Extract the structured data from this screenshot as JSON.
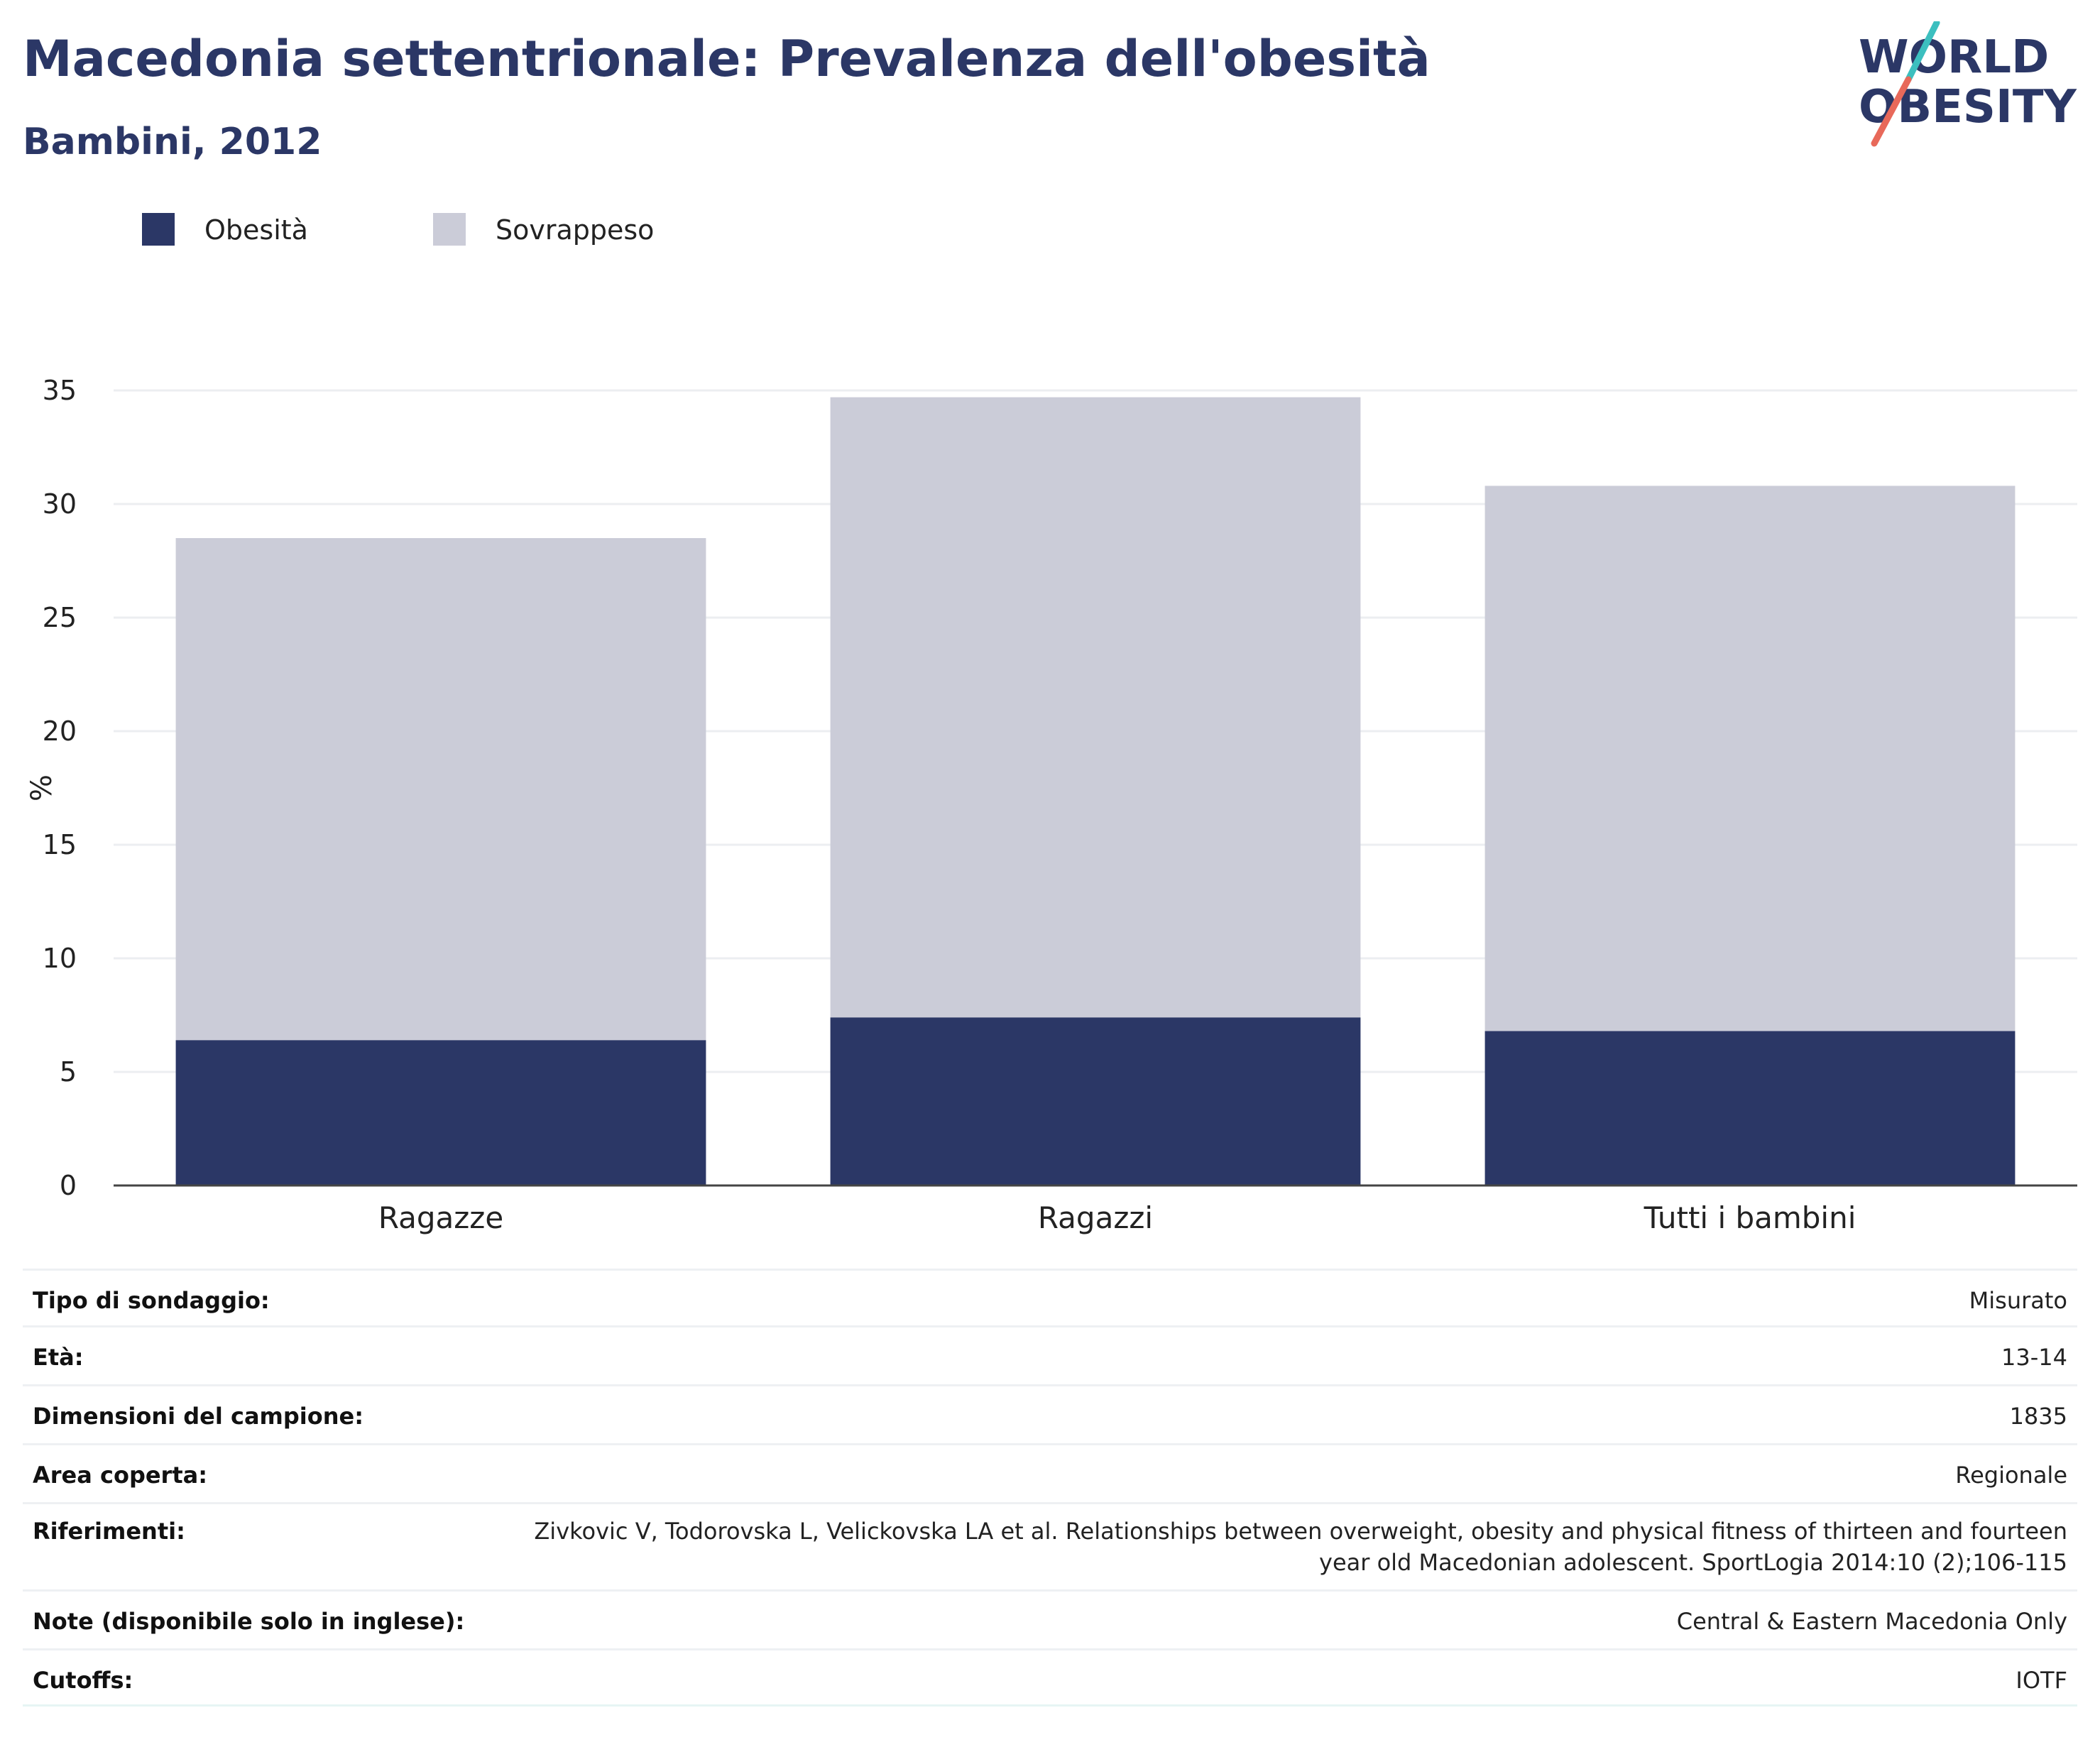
{
  "header": {
    "title": "Macedonia settentrionale: Prevalenza dell'obesità",
    "subtitle": "Bambini, 2012"
  },
  "logo": {
    "line1": "WORLD",
    "line2": "OBESITY"
  },
  "colors": {
    "obesity": "#2b3766",
    "overweight": "#cbccd8",
    "text_dark": "#2b3766",
    "grid": "#eceef1",
    "logo_slash_teal": "#3cbfbf",
    "logo_slash_red": "#e8695a"
  },
  "chart_data": {
    "type": "bar",
    "stacked": true,
    "categories": [
      "Ragazze",
      "Ragazzi",
      "Tutti i bambini"
    ],
    "series": [
      {
        "name": "Obesità",
        "values": [
          6.4,
          7.4,
          6.8
        ]
      },
      {
        "name": "Sovrappeso",
        "values": [
          22.1,
          27.3,
          24.0
        ]
      }
    ],
    "totals": [
      28.5,
      34.7,
      30.8
    ],
    "ylabel": "%",
    "xlabel": "",
    "ylim": [
      0,
      35
    ],
    "yticks": [
      0,
      5,
      10,
      15,
      20,
      25,
      30,
      35
    ],
    "grid": true,
    "legend_position": "top-left"
  },
  "info_table": [
    {
      "label": "Tipo di sondaggio:",
      "value": "Misurato"
    },
    {
      "label": "Età:",
      "value": "13-14"
    },
    {
      "label": "Dimensioni del campione:",
      "value": "1835"
    },
    {
      "label": "Area coperta:",
      "value": "Regionale"
    },
    {
      "label": "Riferimenti:",
      "value": "Zivkovic V, Todorovska L, Velickovska LA et al. Relationships between overweight, obesity and physical fitness of thirteen and fourteen year old Macedonian adolescent. SportLogia 2014:10 (2);106-115"
    },
    {
      "label": "Note (disponibile solo in inglese):",
      "value": "Central & Eastern Macedonia Only"
    },
    {
      "label": "Cutoffs:",
      "value": "IOTF"
    }
  ]
}
